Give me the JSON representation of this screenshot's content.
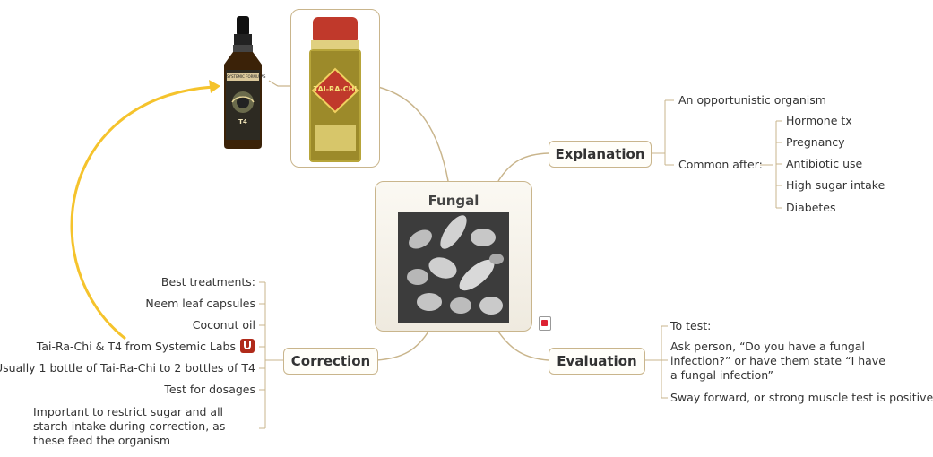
{
  "central": {
    "title": "Fungal",
    "image_icon": "microscope-fungus-image",
    "note_icon": "attachment-note-icon"
  },
  "explanation": {
    "title": "Explanation",
    "items": [
      "An opportunistic organism",
      "Common after:"
    ],
    "common_after": [
      "Hormone tx",
      "Pregnancy",
      "Antibiotic use",
      "High sugar intake",
      "Diabetes"
    ]
  },
  "evaluation": {
    "title": "Evaluation",
    "items": [
      "To test:",
      "Ask person, “Do you have a fungal infection?” or have them state “I have a fungal infection”",
      "Sway forward, or strong muscle test is positive"
    ]
  },
  "correction": {
    "title": "Correction",
    "items": [
      "Best treatments:",
      "Neem leaf capsules",
      "Coconut oil",
      "Tai-Ra-Chi & T4 from Systemic Labs",
      "Usually 1 bottle of Tai-Ra-Chi to 2 bottles of T4",
      "Test for dosages",
      "Important to restrict sugar and all starch intake during correction, as these feed the organism"
    ]
  },
  "images": {
    "t4_bottle": {
      "brand": "SYSTEMIC FORMULAS",
      "label": "T4"
    },
    "tairachi_bottle": {
      "label": "TAI-RA-CHI"
    }
  },
  "colors": {
    "line": "#c9b58c",
    "arrow": "#f5c32c"
  }
}
